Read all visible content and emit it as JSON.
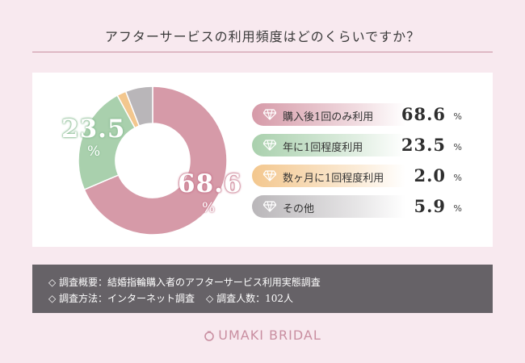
{
  "title": "アフターサービスの利用頻度はどのくらいですか？",
  "colors": {
    "pink": "#d69aa8",
    "green": "#a9d0ad",
    "orange": "#f3c78e",
    "gray": "#b9b6b9"
  },
  "chart_data": {
    "type": "pie",
    "title": "アフターサービスの利用頻度はどのくらいですか？",
    "unit": "%",
    "categories": [
      "購入後1回のみ利用",
      "年に1回程度利用",
      "数ヶ月に1回程度利用",
      "その他"
    ],
    "values": [
      68.6,
      23.5,
      2.0,
      5.9
    ],
    "value_labels": [
      "68.6",
      "23.5",
      "2.0",
      "5.9"
    ],
    "slice_labels": {
      "first": "68.6",
      "second": "23.5",
      "unit": "%"
    },
    "legend_position": "right"
  },
  "notes": {
    "line1": "◇ 調査概要：結婚指輪購入者のアフターサービス利用実態調査",
    "line2a": "◇ 調査方法：インターネット調査",
    "line2b": "◇ 調査人数：102人"
  },
  "brand": "UMAKI BRIDAL",
  "icons": {
    "legend": "diamond-icon",
    "brand": "ring-icon"
  }
}
